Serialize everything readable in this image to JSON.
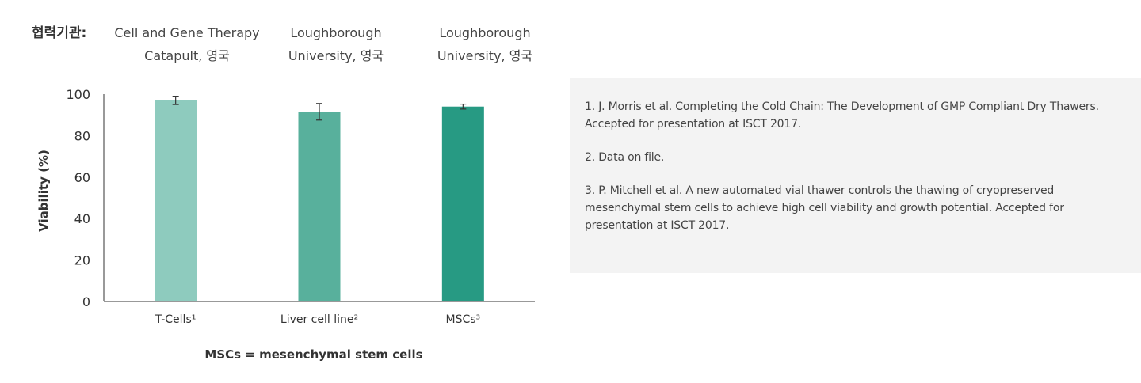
{
  "collaboration": {
    "label": "협력기관:",
    "partners": [
      {
        "line1": "Cell and Gene Therapy",
        "line2": "Catapult, 영국"
      },
      {
        "line1": "Loughborough",
        "line2": "University, 영국"
      },
      {
        "line1": "Loughborough",
        "line2": "University, 영국"
      }
    ]
  },
  "chart_data": {
    "type": "bar",
    "categories": [
      "T-Cells¹",
      "Liver cell line²",
      "MSCs³"
    ],
    "values": [
      97,
      91.5,
      94
    ],
    "errors": [
      2,
      4,
      1.2
    ],
    "colors": [
      "#8ecbbe",
      "#58b09c",
      "#279a83"
    ],
    "ylabel": "Viability (%)",
    "xlabel": "",
    "ylim": [
      0,
      100
    ],
    "yticks": [
      0,
      20,
      40,
      60,
      80,
      100
    ],
    "grid": false,
    "footnote": "MSCs = mesenchymal stem cells"
  },
  "references": [
    "1. J. Morris et al. Completing the Cold Chain: The Development of GMP Compliant Dry Thawers. Accepted for presentation at ISCT 2017.",
    "2. Data on file.",
    "3. P. Mitchell et al. A new automated vial thawer controls the thawing of cryopreserved mesenchymal stem cells to achieve high cell viability and growth potential. Accepted for presentation at ISCT 2017."
  ]
}
